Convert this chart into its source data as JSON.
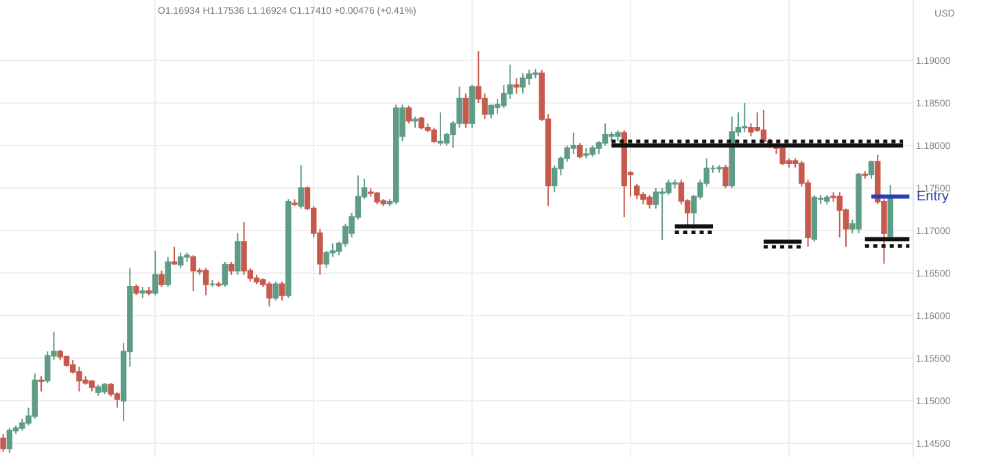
{
  "chart_data": {
    "type": "candlestick",
    "annotations": [
      "O1.16934 H1.17536 L1.16924 C1.17410 +0.00476 (+0.41%)"
    ],
    "ylabel": "USD",
    "categories": [
      null,
      null,
      null,
      null,
      null,
      null,
      null,
      null,
      null,
      null,
      null,
      null,
      null,
      null,
      null,
      null,
      null,
      null,
      null,
      null,
      null,
      null,
      null,
      null,
      null,
      null,
      null,
      null,
      null,
      null,
      null,
      null,
      null,
      null,
      null,
      null,
      null,
      null,
      null,
      null,
      null,
      null,
      null,
      null,
      null,
      null,
      null,
      null,
      null,
      null,
      null,
      null,
      null,
      null,
      null,
      null,
      null,
      null,
      null,
      null,
      null,
      null,
      null,
      null,
      null,
      null,
      null,
      null,
      null,
      null,
      null,
      null,
      null,
      null,
      null,
      null,
      null,
      null,
      null,
      null,
      null,
      null,
      null,
      null,
      null,
      null,
      null,
      null,
      null,
      null,
      null,
      null,
      null,
      null,
      null,
      null,
      null,
      null,
      null,
      null,
      null,
      null,
      null,
      null,
      null,
      null,
      null,
      null,
      null,
      null,
      null,
      null,
      null,
      null,
      null,
      null,
      null,
      null,
      null,
      null,
      null,
      null,
      null,
      null,
      null,
      null,
      null,
      null,
      null,
      null,
      null,
      null,
      null,
      null,
      null,
      null,
      null,
      null,
      null,
      null,
      null,
      null,
      null,
      null
    ],
    "ohlc": [
      [
        1.1456,
        1.1461,
        1.144,
        1.1444
      ],
      [
        1.1444,
        1.1468,
        1.1439,
        1.1465
      ],
      [
        1.1465,
        1.1471,
        1.1461,
        1.1468
      ],
      [
        1.1468,
        1.1479,
        1.1465,
        1.1474
      ],
      [
        1.1474,
        1.1492,
        1.1471,
        1.1482
      ],
      [
        1.1482,
        1.1532,
        1.1479,
        1.1524
      ],
      [
        1.1524,
        1.1529,
        1.1511,
        1.1523
      ],
      [
        1.1524,
        1.1558,
        1.1521,
        1.1553
      ],
      [
        1.1553,
        1.1581,
        1.1548,
        1.1558
      ],
      [
        1.1558,
        1.156,
        1.1548,
        1.1552
      ],
      [
        1.1552,
        1.1553,
        1.154,
        1.1542
      ],
      [
        1.1542,
        1.1548,
        1.1532,
        1.1534
      ],
      [
        1.1534,
        1.154,
        1.1511,
        1.1524
      ],
      [
        1.1524,
        1.1529,
        1.1519,
        1.1521
      ],
      [
        1.1523,
        1.1524,
        1.1511,
        1.1516
      ],
      [
        1.151,
        1.1519,
        1.1506,
        1.1516
      ],
      [
        1.1511,
        1.1521,
        1.1508,
        1.1519
      ],
      [
        1.1519,
        1.1521,
        1.1505,
        1.1508
      ],
      [
        1.1508,
        1.151,
        1.1492,
        1.1502
      ],
      [
        1.15,
        1.1568,
        1.1476,
        1.1558
      ],
      [
        1.1558,
        1.1656,
        1.154,
        1.1634
      ],
      [
        1.1634,
        1.1637,
        1.1624,
        1.1627
      ],
      [
        1.1627,
        1.1634,
        1.1621,
        1.1629
      ],
      [
        1.1629,
        1.1634,
        1.1624,
        1.1627
      ],
      [
        1.1627,
        1.1676,
        1.1624,
        1.1648
      ],
      [
        1.1648,
        1.1653,
        1.1634,
        1.1637
      ],
      [
        1.1637,
        1.1669,
        1.1634,
        1.1663
      ],
      [
        1.1663,
        1.1681,
        1.166,
        1.1661
      ],
      [
        1.166,
        1.1674,
        1.1656,
        1.1669
      ],
      [
        1.1669,
        1.1674,
        1.1663,
        1.1671
      ],
      [
        1.1669,
        1.1671,
        1.1629,
        1.1653
      ],
      [
        1.1653,
        1.1656,
        1.1648,
        1.1652
      ],
      [
        1.1653,
        1.1656,
        1.1624,
        1.1637
      ],
      [
        1.1637,
        1.1642,
        1.1634,
        1.1637
      ],
      [
        1.1637,
        1.164,
        1.1634,
        1.1636
      ],
      [
        1.1637,
        1.1663,
        1.1634,
        1.166
      ],
      [
        1.166,
        1.1663,
        1.1648,
        1.1653
      ],
      [
        1.1653,
        1.1697,
        1.1648,
        1.1687
      ],
      [
        1.1687,
        1.171,
        1.1648,
        1.1653
      ],
      [
        1.1653,
        1.1656,
        1.164,
        1.1644
      ],
      [
        1.1644,
        1.1648,
        1.1637,
        1.164
      ],
      [
        1.1642,
        1.1644,
        1.1634,
        1.1637
      ],
      [
        1.1637,
        1.164,
        1.1611,
        1.1621
      ],
      [
        1.1621,
        1.164,
        1.1618,
        1.1637
      ],
      [
        1.1637,
        1.164,
        1.1618,
        1.1624
      ],
      [
        1.1624,
        1.1737,
        1.1621,
        1.1734
      ],
      [
        1.1732,
        1.1737,
        1.1729,
        1.1731
      ],
      [
        1.1729,
        1.1777,
        1.1726,
        1.175
      ],
      [
        1.175,
        1.1752,
        1.1724,
        1.1726
      ],
      [
        1.1726,
        1.1729,
        1.1692,
        1.1697
      ],
      [
        1.1697,
        1.1702,
        1.1648,
        1.1661
      ],
      [
        1.1661,
        1.1676,
        1.1656,
        1.1674
      ],
      [
        1.1674,
        1.1685,
        1.1669,
        1.1676
      ],
      [
        1.1676,
        1.1687,
        1.1671,
        1.1685
      ],
      [
        1.1685,
        1.1708,
        1.1681,
        1.1705
      ],
      [
        1.1697,
        1.1721,
        1.1692,
        1.1716
      ],
      [
        1.1716,
        1.1765,
        1.1713,
        1.174
      ],
      [
        1.174,
        1.1761,
        1.1737,
        1.175
      ],
      [
        1.1745,
        1.175,
        1.174,
        1.1744
      ],
      [
        1.1744,
        1.1745,
        1.1731,
        1.1734
      ],
      [
        1.1735,
        1.1737,
        1.1729,
        1.1732
      ],
      [
        1.1732,
        1.1737,
        1.1729,
        1.1734
      ],
      [
        1.1734,
        1.1848,
        1.1731,
        1.1844
      ],
      [
        1.1811,
        1.1848,
        1.1805,
        1.1844
      ],
      [
        1.1844,
        1.1847,
        1.1826,
        1.1829
      ],
      [
        1.1829,
        1.1834,
        1.1821,
        1.1831
      ],
      [
        1.1832,
        1.1834,
        1.1819,
        1.1821
      ],
      [
        1.1821,
        1.1826,
        1.1816,
        1.1818
      ],
      [
        1.1818,
        1.1821,
        1.1803,
        1.1805
      ],
      [
        1.1803,
        1.1839,
        1.18,
        1.1805
      ],
      [
        1.1803,
        1.1815,
        1.18,
        1.1813
      ],
      [
        1.1813,
        1.1829,
        1.1797,
        1.1826
      ],
      [
        1.1826,
        1.1869,
        1.1821,
        1.1855
      ],
      [
        1.1855,
        1.1861,
        1.1821,
        1.1826
      ],
      [
        1.1826,
        1.1871,
        1.1821,
        1.1869
      ],
      [
        1.1869,
        1.1911,
        1.185,
        1.1855
      ],
      [
        1.1855,
        1.1861,
        1.1831,
        1.1837
      ],
      [
        1.1837,
        1.1848,
        1.1832,
        1.1847
      ],
      [
        1.1845,
        1.1855,
        1.1837,
        1.1848
      ],
      [
        1.1847,
        1.1871,
        1.1844,
        1.1861
      ],
      [
        1.1861,
        1.1895,
        1.1855,
        1.1871
      ],
      [
        1.1871,
        1.1879,
        1.1861,
        1.1869
      ],
      [
        1.1869,
        1.1885,
        1.1861,
        1.1879
      ],
      [
        1.1879,
        1.1889,
        1.1871,
        1.1884
      ],
      [
        1.1884,
        1.189,
        1.1879,
        1.1885
      ],
      [
        1.1885,
        1.1889,
        1.1829,
        1.1831
      ],
      [
        1.1831,
        1.1837,
        1.1729,
        1.1753
      ],
      [
        1.1753,
        1.1777,
        1.1745,
        1.1773
      ],
      [
        1.1773,
        1.1787,
        1.1765,
        1.1785
      ],
      [
        1.1785,
        1.18,
        1.1781,
        1.1797
      ],
      [
        1.1797,
        1.1815,
        1.179,
        1.18
      ],
      [
        1.18,
        1.1803,
        1.1785,
        1.1787
      ],
      [
        1.1789,
        1.1797,
        1.1785,
        1.179
      ],
      [
        1.179,
        1.18,
        1.1787,
        1.1797
      ],
      [
        1.1797,
        1.1805,
        1.179,
        1.1803
      ],
      [
        1.1803,
        1.1826,
        1.18,
        1.1813
      ],
      [
        1.1811,
        1.1816,
        1.1805,
        1.1813
      ],
      [
        1.1811,
        1.1818,
        1.1805,
        1.1815
      ],
      [
        1.1815,
        1.1818,
        1.1716,
        1.1753
      ],
      [
        1.1768,
        1.177,
        1.174,
        1.1766
      ],
      [
        1.1752,
        1.1755,
        1.1737,
        1.1742
      ],
      [
        1.1742,
        1.1745,
        1.1731,
        1.1737
      ],
      [
        1.1739,
        1.1742,
        1.1726,
        1.1731
      ],
      [
        1.1731,
        1.175,
        1.1726,
        1.1745
      ],
      [
        1.1744,
        1.175,
        1.1689,
        1.1745
      ],
      [
        1.1745,
        1.176,
        1.1742,
        1.1756
      ],
      [
        1.1755,
        1.176,
        1.175,
        1.1756
      ],
      [
        1.1756,
        1.176,
        1.1731,
        1.1735
      ],
      [
        1.1735,
        1.1737,
        1.1705,
        1.1721
      ],
      [
        1.1721,
        1.1742,
        1.1702,
        1.174
      ],
      [
        1.174,
        1.176,
        1.1737,
        1.1756
      ],
      [
        1.1756,
        1.1785,
        1.1752,
        1.1773
      ],
      [
        1.1773,
        1.1777,
        1.1768,
        1.1773
      ],
      [
        1.1773,
        1.1777,
        1.1768,
        1.1774
      ],
      [
        1.1774,
        1.1777,
        1.175,
        1.1753
      ],
      [
        1.1753,
        1.1834,
        1.175,
        1.1816
      ],
      [
        1.1816,
        1.1839,
        1.1811,
        1.1821
      ],
      [
        1.1821,
        1.185,
        1.1816,
        1.1822
      ],
      [
        1.1821,
        1.1826,
        1.1811,
        1.1816
      ],
      [
        1.1821,
        1.1839,
        1.1816,
        1.1818
      ],
      [
        1.1818,
        1.1842,
        1.18,
        1.1805
      ],
      [
        1.1805,
        1.1808,
        1.1797,
        1.18
      ],
      [
        1.18,
        1.1803,
        1.179,
        1.1797
      ],
      [
        1.1797,
        1.18,
        1.1777,
        1.1779
      ],
      [
        1.1782,
        1.1785,
        1.1774,
        1.1779
      ],
      [
        1.1782,
        1.1785,
        1.1774,
        1.1779
      ],
      [
        1.1779,
        1.1782,
        1.1752,
        1.1756
      ],
      [
        1.1756,
        1.176,
        1.1681,
        1.1692
      ],
      [
        1.169,
        1.1742,
        1.1687,
        1.1739
      ],
      [
        1.1737,
        1.1742,
        1.1731,
        1.1738
      ],
      [
        1.1735,
        1.1742,
        1.1731,
        1.1739
      ],
      [
        1.174,
        1.1745,
        1.1734,
        1.1739
      ],
      [
        1.174,
        1.1745,
        1.1692,
        1.1724
      ],
      [
        1.1724,
        1.1726,
        1.1681,
        1.1702
      ],
      [
        1.1702,
        1.1713,
        1.1697,
        1.1708
      ],
      [
        1.1702,
        1.1768,
        1.1697,
        1.1766
      ],
      [
        1.1766,
        1.177,
        1.1761,
        1.1765
      ],
      [
        1.1766,
        1.1782,
        1.1761,
        1.1781
      ],
      [
        1.1781,
        1.1789,
        1.1731,
        1.1734
      ],
      [
        1.1734,
        1.1737,
        1.1661,
        1.1697
      ],
      [
        1.16934,
        1.17536,
        1.16924,
        1.1741
      ],
      null,
      null,
      null
    ],
    "colors": [
      "#c65a4e",
      "#5f9c86",
      "#5f9c86",
      "#5f9c86",
      "#5f9c86",
      "#5f9c86",
      "#c65a4e",
      "#5f9c86",
      "#5f9c86",
      "#c65a4e",
      "#c65a4e",
      "#c65a4e",
      "#c65a4e",
      "#c65a4e",
      "#c65a4e",
      "#5f9c86",
      "#5f9c86",
      "#c65a4e",
      "#c65a4e",
      "#5f9c86",
      "#5f9c86",
      "#c65a4e",
      "#5f9c86",
      "#c65a4e",
      "#5f9c86",
      "#c65a4e",
      "#5f9c86",
      "#c65a4e",
      "#5f9c86",
      "#5f9c86",
      "#c65a4e",
      "#c65a4e",
      "#c65a4e",
      "#5f9c86",
      "#c65a4e",
      "#5f9c86",
      "#c65a4e",
      "#5f9c86",
      "#c65a4e",
      "#c65a4e",
      "#c65a4e",
      "#c65a4e",
      "#c65a4e",
      "#5f9c86",
      "#c65a4e",
      "#5f9c86",
      "#c65a4e",
      "#5f9c86",
      "#c65a4e",
      "#c65a4e",
      "#c65a4e",
      "#5f9c86",
      "#5f9c86",
      "#5f9c86",
      "#5f9c86",
      "#5f9c86",
      "#5f9c86",
      "#5f9c86",
      "#c65a4e",
      "#c65a4e",
      "#c65a4e",
      "#5f9c86",
      "#5f9c86",
      "#5f9c86",
      "#c65a4e",
      "#5f9c86",
      "#c65a4e",
      "#c65a4e",
      "#c65a4e",
      "#5f9c86",
      "#5f9c86",
      "#5f9c86",
      "#5f9c86",
      "#c65a4e",
      "#5f9c86",
      "#c65a4e",
      "#c65a4e",
      "#5f9c86",
      "#5f9c86",
      "#5f9c86",
      "#5f9c86",
      "#c65a4e",
      "#5f9c86",
      "#5f9c86",
      "#5f9c86",
      "#c65a4e",
      "#c65a4e",
      "#5f9c86",
      "#5f9c86",
      "#5f9c86",
      "#5f9c86",
      "#c65a4e",
      "#5f9c86",
      "#5f9c86",
      "#5f9c86",
      "#5f9c86",
      "#5f9c86",
      "#5f9c86",
      "#c65a4e",
      "#c65a4e",
      "#c65a4e",
      "#c65a4e",
      "#c65a4e",
      "#5f9c86",
      "#5f9c86",
      "#5f9c86",
      "#5f9c86",
      "#c65a4e",
      "#c65a4e",
      "#5f9c86",
      "#5f9c86",
      "#5f9c86",
      "#5f9c86",
      "#5f9c86",
      "#c65a4e",
      "#5f9c86",
      "#5f9c86",
      "#5f9c86",
      "#c65a4e",
      "#c65a4e",
      "#c65a4e",
      "#c65a4e",
      "#c65a4e",
      "#c65a4e",
      "#c65a4e",
      "#c65a4e",
      "#c65a4e",
      "#c65a4e",
      "#5f9c86",
      "#5f9c86",
      "#5f9c86",
      "#c65a4e",
      "#c65a4e",
      "#c65a4e",
      "#5f9c86",
      "#5f9c86",
      "#c65a4e",
      "#5f9c86",
      "#c65a4e",
      "#c65a4e",
      "#5f9c86",
      null,
      null,
      null
    ],
    "series": [
      {
        "type": "line",
        "color": "#111111",
        "line_style": "solid",
        "values": [
          null,
          null,
          null,
          null,
          null,
          null,
          null,
          null,
          null,
          null,
          null,
          null,
          null,
          null,
          null,
          null,
          null,
          null,
          null,
          null,
          null,
          null,
          null,
          null,
          null,
          null,
          null,
          null,
          null,
          null,
          null,
          null,
          null,
          null,
          null,
          null,
          null,
          null,
          null,
          null,
          null,
          null,
          null,
          null,
          null,
          null,
          null,
          null,
          null,
          null,
          null,
          null,
          null,
          null,
          null,
          null,
          null,
          null,
          null,
          null,
          null,
          null,
          null,
          null,
          null,
          null,
          null,
          null,
          null,
          null,
          null,
          null,
          null,
          null,
          null,
          null,
          null,
          null,
          null,
          null,
          null,
          null,
          null,
          null,
          null,
          null,
          null,
          null,
          null,
          null,
          null,
          null,
          null,
          null,
          null,
          null,
          1.18,
          1.18,
          1.18,
          1.18,
          1.18,
          1.18,
          1.18,
          1.18,
          1.18,
          1.18,
          1.18,
          1.18,
          1.18,
          1.18,
          1.18,
          1.18,
          1.18,
          1.18,
          1.18,
          1.18,
          1.18,
          1.18,
          1.18,
          1.18,
          1.18,
          1.18,
          1.18,
          1.18,
          1.18,
          1.18,
          1.18,
          1.18,
          1.18,
          1.18,
          1.18,
          1.18,
          1.18,
          1.18,
          1.18,
          1.18,
          1.18,
          1.18,
          1.18,
          1.18,
          1.18,
          1.18,
          1.18,
          null
        ]
      },
      {
        "type": "line",
        "color": "#111111",
        "line_style": "dotted",
        "values": [
          null,
          null,
          null,
          null,
          null,
          null,
          null,
          null,
          null,
          null,
          null,
          null,
          null,
          null,
          null,
          null,
          null,
          null,
          null,
          null,
          null,
          null,
          null,
          null,
          null,
          null,
          null,
          null,
          null,
          null,
          null,
          null,
          null,
          null,
          null,
          null,
          null,
          null,
          null,
          null,
          null,
          null,
          null,
          null,
          null,
          null,
          null,
          null,
          null,
          null,
          null,
          null,
          null,
          null,
          null,
          null,
          null,
          null,
          null,
          null,
          null,
          null,
          null,
          null,
          null,
          null,
          null,
          null,
          null,
          null,
          null,
          null,
          null,
          null,
          null,
          null,
          null,
          null,
          null,
          null,
          null,
          null,
          null,
          null,
          null,
          null,
          null,
          null,
          null,
          null,
          null,
          null,
          null,
          null,
          null,
          null,
          1.1805,
          1.1805,
          1.1805,
          1.1805,
          1.1805,
          1.1805,
          1.1805,
          1.1805,
          1.1805,
          1.1805,
          1.1805,
          1.1805,
          1.1805,
          1.1805,
          1.1805,
          1.1805,
          1.1805,
          1.1805,
          1.1805,
          1.1805,
          1.1805,
          1.1805,
          1.1805,
          1.1805,
          1.1805,
          1.1805,
          1.1805,
          1.1805,
          1.1805,
          1.1805,
          1.1805,
          1.1805,
          1.1805,
          1.1805,
          1.1805,
          1.1805,
          1.1805,
          1.1805,
          1.1805,
          1.1805,
          1.1805,
          1.1805,
          1.1805,
          1.1805,
          1.1805,
          1.1805,
          1.1805,
          null
        ]
      },
      {
        "type": "line",
        "color": "#111111",
        "line_style": "solid",
        "values": [
          null,
          null,
          null,
          null,
          null,
          null,
          null,
          null,
          null,
          null,
          null,
          null,
          null,
          null,
          null,
          null,
          null,
          null,
          null,
          null,
          null,
          null,
          null,
          null,
          null,
          null,
          null,
          null,
          null,
          null,
          null,
          null,
          null,
          null,
          null,
          null,
          null,
          null,
          null,
          null,
          null,
          null,
          null,
          null,
          null,
          null,
          null,
          null,
          null,
          null,
          null,
          null,
          null,
          null,
          null,
          null,
          null,
          null,
          null,
          null,
          null,
          null,
          null,
          null,
          null,
          null,
          null,
          null,
          null,
          null,
          null,
          null,
          null,
          null,
          null,
          null,
          null,
          null,
          null,
          null,
          null,
          null,
          null,
          null,
          null,
          null,
          null,
          null,
          null,
          null,
          null,
          null,
          null,
          null,
          null,
          null,
          null,
          null,
          null,
          null,
          null,
          null,
          null,
          null,
          null,
          null,
          1.1705,
          1.1705,
          1.1705,
          1.1705,
          1.1705,
          1.1705,
          1.1705,
          null,
          null,
          null,
          null,
          null,
          null,
          null,
          null,
          null,
          null,
          null,
          null,
          null,
          null,
          null,
          null,
          null,
          null,
          null,
          null,
          null,
          null,
          null,
          null,
          null,
          null,
          null,
          null,
          null,
          null,
          null
        ]
      },
      {
        "type": "line",
        "color": "#111111",
        "line_style": "dotted",
        "values": [
          null,
          null,
          null,
          null,
          null,
          null,
          null,
          null,
          null,
          null,
          null,
          null,
          null,
          null,
          null,
          null,
          null,
          null,
          null,
          null,
          null,
          null,
          null,
          null,
          null,
          null,
          null,
          null,
          null,
          null,
          null,
          null,
          null,
          null,
          null,
          null,
          null,
          null,
          null,
          null,
          null,
          null,
          null,
          null,
          null,
          null,
          null,
          null,
          null,
          null,
          null,
          null,
          null,
          null,
          null,
          null,
          null,
          null,
          null,
          null,
          null,
          null,
          null,
          null,
          null,
          null,
          null,
          null,
          null,
          null,
          null,
          null,
          null,
          null,
          null,
          null,
          null,
          null,
          null,
          null,
          null,
          null,
          null,
          null,
          null,
          null,
          null,
          null,
          null,
          null,
          null,
          null,
          null,
          null,
          null,
          null,
          null,
          null,
          null,
          null,
          null,
          null,
          null,
          null,
          null,
          null,
          1.1698,
          1.1698,
          1.1698,
          1.1698,
          1.1698,
          1.1698,
          1.1698,
          null,
          null,
          null,
          null,
          null,
          null,
          null,
          null,
          null,
          null,
          null,
          null,
          null,
          null,
          null,
          null,
          null,
          null,
          null,
          null,
          null,
          null,
          null,
          null,
          null,
          null,
          null,
          null,
          null,
          null,
          null
        ]
      },
      {
        "type": "line",
        "color": "#111111",
        "line_style": "solid",
        "values": [
          null,
          null,
          null,
          null,
          null,
          null,
          null,
          null,
          null,
          null,
          null,
          null,
          null,
          null,
          null,
          null,
          null,
          null,
          null,
          null,
          null,
          null,
          null,
          null,
          null,
          null,
          null,
          null,
          null,
          null,
          null,
          null,
          null,
          null,
          null,
          null,
          null,
          null,
          null,
          null,
          null,
          null,
          null,
          null,
          null,
          null,
          null,
          null,
          null,
          null,
          null,
          null,
          null,
          null,
          null,
          null,
          null,
          null,
          null,
          null,
          null,
          null,
          null,
          null,
          null,
          null,
          null,
          null,
          null,
          null,
          null,
          null,
          null,
          null,
          null,
          null,
          null,
          null,
          null,
          null,
          null,
          null,
          null,
          null,
          null,
          null,
          null,
          null,
          null,
          null,
          null,
          null,
          null,
          null,
          null,
          null,
          null,
          null,
          null,
          null,
          null,
          null,
          null,
          null,
          null,
          null,
          null,
          null,
          null,
          null,
          null,
          null,
          null,
          null,
          null,
          null,
          null,
          null,
          null,
          null,
          1.1687,
          1.1687,
          1.1687,
          1.1687,
          1.1687,
          1.1687,
          1.1687,
          null,
          null,
          null,
          null,
          null,
          null,
          null,
          null,
          null,
          null,
          null,
          null,
          null,
          null,
          null,
          null,
          null
        ]
      },
      {
        "type": "line",
        "color": "#111111",
        "line_style": "dotted",
        "values": [
          null,
          null,
          null,
          null,
          null,
          null,
          null,
          null,
          null,
          null,
          null,
          null,
          null,
          null,
          null,
          null,
          null,
          null,
          null,
          null,
          null,
          null,
          null,
          null,
          null,
          null,
          null,
          null,
          null,
          null,
          null,
          null,
          null,
          null,
          null,
          null,
          null,
          null,
          null,
          null,
          null,
          null,
          null,
          null,
          null,
          null,
          null,
          null,
          null,
          null,
          null,
          null,
          null,
          null,
          null,
          null,
          null,
          null,
          null,
          null,
          null,
          null,
          null,
          null,
          null,
          null,
          null,
          null,
          null,
          null,
          null,
          null,
          null,
          null,
          null,
          null,
          null,
          null,
          null,
          null,
          null,
          null,
          null,
          null,
          null,
          null,
          null,
          null,
          null,
          null,
          null,
          null,
          null,
          null,
          null,
          null,
          null,
          null,
          null,
          null,
          null,
          null,
          null,
          null,
          null,
          null,
          null,
          null,
          null,
          null,
          null,
          null,
          null,
          null,
          null,
          null,
          null,
          null,
          null,
          null,
          1.1681,
          1.1681,
          1.1681,
          1.1681,
          1.1681,
          1.1681,
          1.1681,
          null,
          null,
          null,
          null,
          null,
          null,
          null,
          null,
          null,
          null,
          null,
          null,
          null,
          null,
          null,
          null,
          null
        ]
      },
      {
        "type": "line",
        "color": "#111111",
        "line_style": "solid",
        "values": [
          null,
          null,
          null,
          null,
          null,
          null,
          null,
          null,
          null,
          null,
          null,
          null,
          null,
          null,
          null,
          null,
          null,
          null,
          null,
          null,
          null,
          null,
          null,
          null,
          null,
          null,
          null,
          null,
          null,
          null,
          null,
          null,
          null,
          null,
          null,
          null,
          null,
          null,
          null,
          null,
          null,
          null,
          null,
          null,
          null,
          null,
          null,
          null,
          null,
          null,
          null,
          null,
          null,
          null,
          null,
          null,
          null,
          null,
          null,
          null,
          null,
          null,
          null,
          null,
          null,
          null,
          null,
          null,
          null,
          null,
          null,
          null,
          null,
          null,
          null,
          null,
          null,
          null,
          null,
          null,
          null,
          null,
          null,
          null,
          null,
          null,
          null,
          null,
          null,
          null,
          null,
          null,
          null,
          null,
          null,
          null,
          null,
          null,
          null,
          null,
          null,
          null,
          null,
          null,
          null,
          null,
          null,
          null,
          null,
          null,
          null,
          null,
          null,
          null,
          null,
          null,
          null,
          null,
          null,
          null,
          null,
          null,
          null,
          null,
          null,
          null,
          null,
          null,
          null,
          null,
          null,
          null,
          null,
          null,
          null,
          null,
          1.169,
          1.169,
          1.169,
          1.169,
          1.169,
          1.169,
          1.169,
          1.169
        ]
      },
      {
        "type": "line",
        "color": "#111111",
        "line_style": "dotted",
        "values": [
          null,
          null,
          null,
          null,
          null,
          null,
          null,
          null,
          null,
          null,
          null,
          null,
          null,
          null,
          null,
          null,
          null,
          null,
          null,
          null,
          null,
          null,
          null,
          null,
          null,
          null,
          null,
          null,
          null,
          null,
          null,
          null,
          null,
          null,
          null,
          null,
          null,
          null,
          null,
          null,
          null,
          null,
          null,
          null,
          null,
          null,
          null,
          null,
          null,
          null,
          null,
          null,
          null,
          null,
          null,
          null,
          null,
          null,
          null,
          null,
          null,
          null,
          null,
          null,
          null,
          null,
          null,
          null,
          null,
          null,
          null,
          null,
          null,
          null,
          null,
          null,
          null,
          null,
          null,
          null,
          null,
          null,
          null,
          null,
          null,
          null,
          null,
          null,
          null,
          null,
          null,
          null,
          null,
          null,
          null,
          null,
          null,
          null,
          null,
          null,
          null,
          null,
          null,
          null,
          null,
          null,
          null,
          null,
          null,
          null,
          null,
          null,
          null,
          null,
          null,
          null,
          null,
          null,
          null,
          null,
          null,
          null,
          null,
          null,
          null,
          null,
          null,
          null,
          null,
          null,
          null,
          null,
          null,
          null,
          null,
          null,
          1.1682,
          1.1682,
          1.1682,
          1.1682,
          1.1682,
          1.1682,
          1.1682,
          1.1682
        ]
      },
      {
        "type": "line",
        "name": "Entry",
        "color": "#2b3fb0",
        "line_style": "solid",
        "values": [
          null,
          null,
          null,
          null,
          null,
          null,
          null,
          null,
          null,
          null,
          null,
          null,
          null,
          null,
          null,
          null,
          null,
          null,
          null,
          null,
          null,
          null,
          null,
          null,
          null,
          null,
          null,
          null,
          null,
          null,
          null,
          null,
          null,
          null,
          null,
          null,
          null,
          null,
          null,
          null,
          null,
          null,
          null,
          null,
          null,
          null,
          null,
          null,
          null,
          null,
          null,
          null,
          null,
          null,
          null,
          null,
          null,
          null,
          null,
          null,
          null,
          null,
          null,
          null,
          null,
          null,
          null,
          null,
          null,
          null,
          null,
          null,
          null,
          null,
          null,
          null,
          null,
          null,
          null,
          null,
          null,
          null,
          null,
          null,
          null,
          null,
          null,
          null,
          null,
          null,
          null,
          null,
          null,
          null,
          null,
          null,
          null,
          null,
          null,
          null,
          null,
          null,
          null,
          null,
          null,
          null,
          null,
          null,
          null,
          null,
          null,
          null,
          null,
          null,
          null,
          null,
          null,
          null,
          null,
          null,
          null,
          null,
          null,
          null,
          null,
          null,
          null,
          null,
          null,
          null,
          null,
          null,
          null,
          null,
          null,
          null,
          null,
          1.174,
          1.174,
          1.174,
          1.174,
          1.174,
          1.174,
          1.174
        ]
      }
    ],
    "ylim": [
      1.1434,
      1.1971
    ],
    "yticks": [
      {
        "value": 1.145,
        "label": "1.14500"
      },
      {
        "value": 1.15,
        "label": "1.15000"
      },
      {
        "value": 1.155,
        "label": "1.15500"
      },
      {
        "value": 1.16,
        "label": "1.16000"
      },
      {
        "value": 1.165,
        "label": "1.16500"
      },
      {
        "value": 1.17,
        "label": "1.17000"
      },
      {
        "value": 1.175,
        "label": "1.17500"
      },
      {
        "value": 1.18,
        "label": "1.18000"
      },
      {
        "value": 1.185,
        "label": "1.18500"
      },
      {
        "value": 1.19,
        "label": "1.19000"
      }
    ],
    "grid": true,
    "tick_labels": "y"
  }
}
